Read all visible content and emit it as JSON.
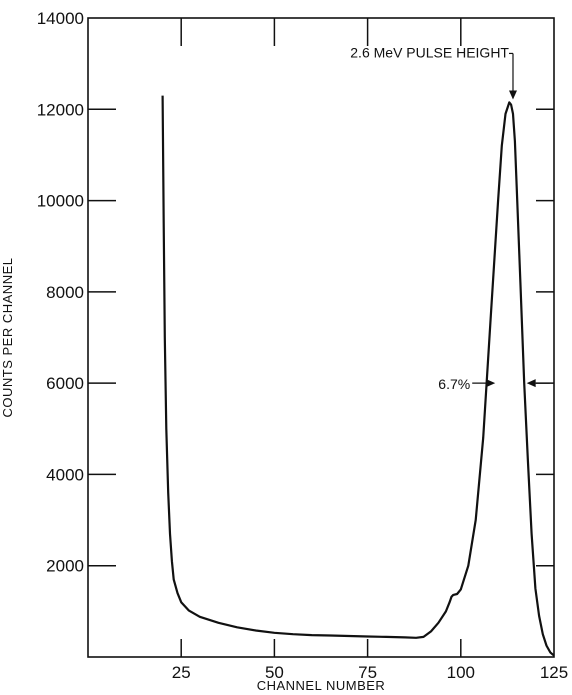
{
  "chart_data": {
    "type": "line",
    "title": "",
    "xlabel": "CHANNEL  NUMBER",
    "ylabel": "COUNTS PER CHANNEL",
    "xlim": [
      0,
      125
    ],
    "ylim": [
      0,
      14000
    ],
    "grid": false,
    "x_ticks": [
      25,
      50,
      75,
      100,
      125
    ],
    "y_ticks": [
      2000,
      4000,
      6000,
      8000,
      10000,
      12000,
      14000
    ],
    "x_tick_labels": [
      "25",
      "50",
      "75",
      "100",
      "125"
    ],
    "y_tick_labels": [
      "2000",
      "4000",
      "6000",
      "8000",
      "10000",
      "12000",
      "14000"
    ],
    "series": [
      {
        "x": [
          20,
          20.3,
          20.6,
          21,
          21.5,
          22,
          22.5,
          23,
          24,
          25,
          27,
          30,
          35,
          40,
          45,
          50,
          55,
          60,
          65,
          70,
          75,
          80,
          85,
          88,
          90,
          92,
          94,
          96,
          97,
          97.5,
          98,
          99,
          100,
          102,
          104,
          106,
          108,
          110,
          111,
          112,
          113,
          113.5,
          114,
          114.5,
          115,
          116,
          117,
          118,
          119,
          120,
          121,
          122,
          123,
          124,
          125
        ],
        "y": [
          12300,
          9500,
          7000,
          5000,
          3600,
          2700,
          2100,
          1700,
          1400,
          1200,
          1020,
          880,
          750,
          650,
          580,
          530,
          500,
          480,
          470,
          460,
          450,
          440,
          430,
          420,
          440,
          560,
          750,
          1000,
          1200,
          1320,
          1360,
          1380,
          1480,
          2000,
          3000,
          4800,
          7400,
          10000,
          11200,
          11900,
          12150,
          12100,
          11900,
          11300,
          10300,
          8200,
          6000,
          4300,
          2700,
          1500,
          900,
          500,
          250,
          100,
          30
        ]
      }
    ],
    "annotations": [
      {
        "text": "2.6 MeV PULSE HEIGHT",
        "x": 114,
        "y": 12150
      },
      {
        "text": "6.7%",
        "x_left": 109.5,
        "x_right": 117.4,
        "y": 6000
      }
    ]
  }
}
